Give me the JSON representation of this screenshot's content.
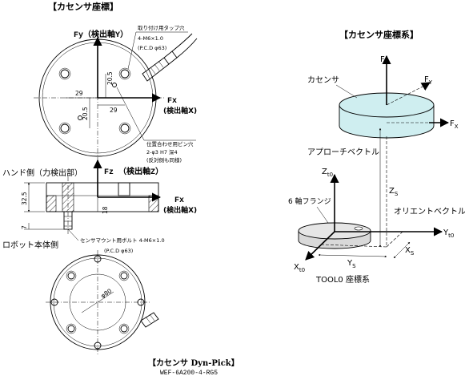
{
  "left": {
    "title": "【カセンサ座標】",
    "fy_label": "Fy（検出軸Y）",
    "fx_label": "Fx",
    "fx_sub": "(検出軸X)",
    "tap_note_1": "取り付け用タップ穴",
    "tap_note_2": "4-M6×1.0",
    "tap_note_3": "(P.C.D φ63)",
    "dim_20_5_a": "20.5",
    "dim_29_a": "29",
    "dim_29_b": "29",
    "dim_20_5_b": "20.5",
    "pin_note_1": "位置合わせ用ピン穴",
    "pin_note_2": "2-φ3 H7 深4",
    "pin_note_3": "(反対側も同様)",
    "hand_side": "ハンド側（力検出部）",
    "fz_label": "Fz （検出軸Z）",
    "fx2_label": "Fx",
    "fx2_sub": "(検出軸X)",
    "dim_32_5": "32.5",
    "dim_18": "18",
    "dim_7": "7",
    "robot_side": "ロボット本体側",
    "bolt_note_1": "センサマウント用ボルト 4-M6×1.0",
    "bolt_note_2": "(P.C.D φ63)",
    "dim_phi80": "φ80",
    "caption": "【カセンサ Dyn-Pick】",
    "model": "WEF-6A200-4-RG5"
  },
  "right": {
    "title": "【カセンサ座標系】",
    "fz": "F",
    "fz_sub": "Z",
    "fy": "F",
    "fy_sub": "Y",
    "fx": "F",
    "fx_sub": "X",
    "sensor_label": "カセンサ",
    "approach_label": "アプローチベクトル",
    "zt0": "Z",
    "zt0_sub": "t0",
    "zs": "Z",
    "zs_sub": "S",
    "flange_label": "6 軸フランジ",
    "orient_label": "オリエントベクトル",
    "yt0": "Y",
    "yt0_sub": "t0",
    "xs": "X",
    "xs_sub": "S",
    "ys": "Y",
    "ys_sub": "S",
    "xt0": "X",
    "xt0_sub": "t0",
    "tool_label": "TOOL0 座標系"
  },
  "colors": {
    "line": "#000000",
    "cylinder_fill": "#cfeef0",
    "flange_fill": "#d9d9d9",
    "hatch": "#000000"
  }
}
